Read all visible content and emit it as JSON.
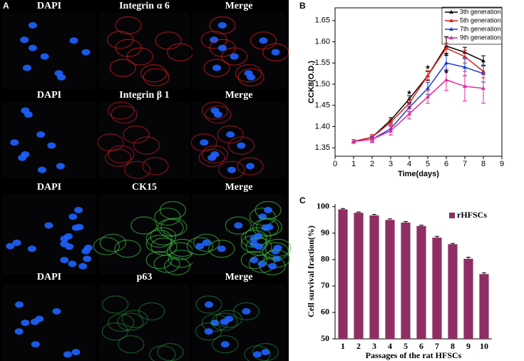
{
  "panel_a": {
    "label": "A",
    "rows": [
      [
        "DAPI",
        "Integrin α 6",
        "Merge"
      ],
      [
        "DAPI",
        "Integrin β 1",
        "Merge"
      ],
      [
        "DAPI",
        "CK15",
        "Merge"
      ],
      [
        "DAPI",
        "p63",
        "Merge"
      ]
    ]
  },
  "chart_data": [
    {
      "type": "line",
      "panel": "B",
      "x_label": "Time(days)",
      "y_label": "CCK8(O.D.)",
      "x": [
        1,
        2,
        3,
        4,
        5,
        6,
        7,
        8
      ],
      "series": [
        {
          "name": "3th generation",
          "color": "#000000",
          "values": [
            1.365,
            1.375,
            1.415,
            1.465,
            1.52,
            1.59,
            1.575,
            1.555
          ],
          "errors": [
            0.004,
            0.006,
            0.006,
            0.008,
            0.01,
            0.022,
            0.012,
            0.012
          ]
        },
        {
          "name": "5th generation",
          "color": "#e0201c",
          "values": [
            1.365,
            1.375,
            1.41,
            1.455,
            1.52,
            1.585,
            1.565,
            1.53
          ],
          "errors": [
            0.004,
            0.006,
            0.006,
            0.008,
            0.012,
            0.012,
            0.015,
            0.015
          ]
        },
        {
          "name": "7th generation",
          "color": "#1f3fd0",
          "values": [
            1.365,
            1.37,
            1.395,
            1.445,
            1.49,
            1.55,
            1.54,
            1.525
          ],
          "errors": [
            0.004,
            0.006,
            0.008,
            0.01,
            0.014,
            0.018,
            0.02,
            0.02
          ]
        },
        {
          "name": "9th generation",
          "color": "#e8259b",
          "values": [
            1.365,
            1.37,
            1.39,
            1.43,
            1.47,
            1.51,
            1.495,
            1.49
          ],
          "errors": [
            0.004,
            0.008,
            0.01,
            0.012,
            0.015,
            0.025,
            0.035,
            0.035
          ]
        }
      ],
      "annotations": [
        {
          "x": 4,
          "y": 1.475,
          "text": "*"
        },
        {
          "x": 5,
          "y": 1.535,
          "text": "*"
        },
        {
          "x": 6,
          "y": 1.565,
          "text": "*"
        },
        {
          "x": 6,
          "y": 1.525,
          "text": "*"
        }
      ],
      "xlim": [
        0,
        9
      ],
      "xticks": [
        0,
        1,
        2,
        3,
        4,
        5,
        6,
        7,
        8,
        9
      ],
      "ylim": [
        1.33,
        1.68
      ],
      "yticks": [
        1.35,
        {
          "value": 1.4,
          "label": "1.40"
        },
        1.45,
        {
          "value": 1.5,
          "label": "1.50"
        },
        1.55,
        {
          "value": 1.6,
          "label": "1.60"
        },
        1.65
      ],
      "legend": "upper right"
    },
    {
      "type": "bar",
      "panel": "C",
      "x_label": "Passages of the rat HFSCs",
      "y_label": "Cell survival fraction(%)",
      "categories": [
        "1",
        "2",
        "3",
        "4",
        "5",
        "6",
        "7",
        "8",
        "9",
        "10"
      ],
      "series": [
        {
          "name": "rHFSCs",
          "color": "#8e2f63",
          "values": [
            99,
            97.7,
            96.7,
            95,
            94,
            92.7,
            88.3,
            85.8,
            80.3,
            74.5
          ],
          "errors": [
            0.3,
            0.3,
            0.4,
            0.4,
            0.4,
            0.3,
            0.5,
            0.3,
            0.6,
            0.5
          ]
        }
      ],
      "ylim": [
        50,
        101
      ],
      "yticks": [
        50,
        60,
        70,
        80,
        90,
        100
      ],
      "legend": "upper right"
    }
  ]
}
